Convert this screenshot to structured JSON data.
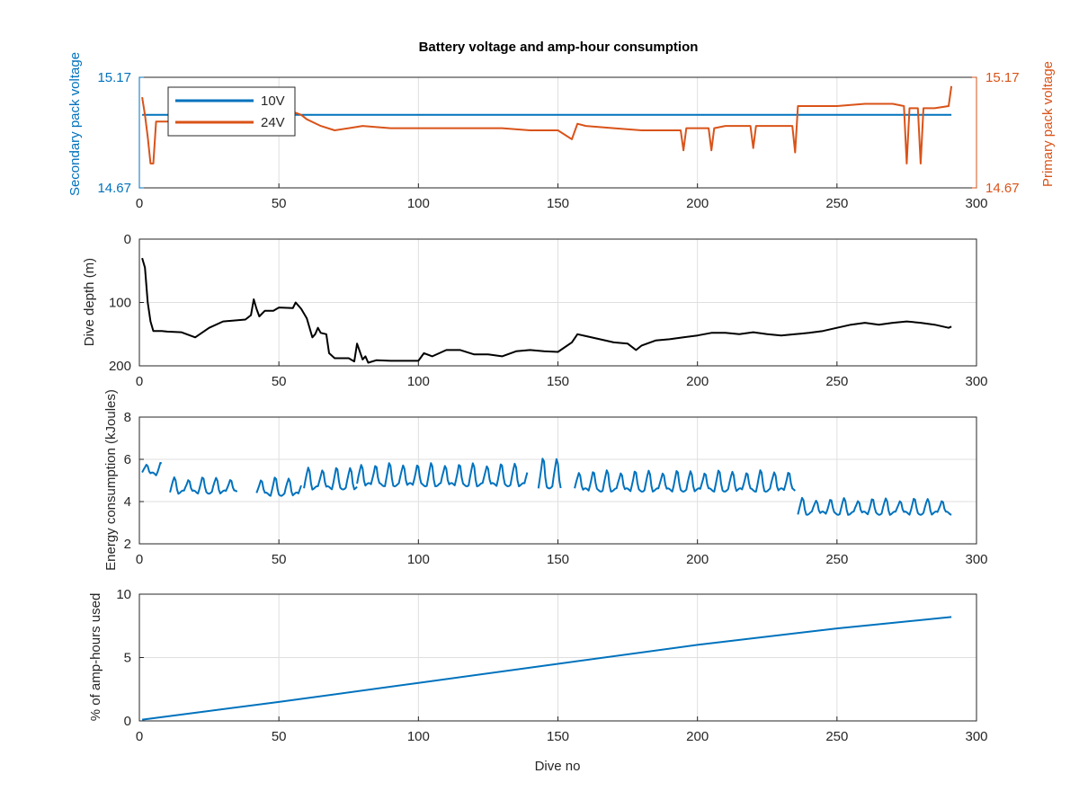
{
  "colors": {
    "blue": "#0072BD",
    "orange": "#D95319",
    "black": "#000000",
    "axis": "#262626",
    "grid": "#dfdfdf"
  },
  "chart_data": [
    {
      "type": "line",
      "title": "Battery voltage and amp-hour consumption",
      "xlabel": "",
      "ylabel_left": "Secondary pack voltage",
      "ylabel_right": "Primary pack voltage",
      "xlim": [
        0,
        300
      ],
      "ylim": [
        14.67,
        15.17
      ],
      "x_ticks": [
        "0",
        "50",
        "100",
        "150",
        "200",
        "250",
        "300"
      ],
      "y_ticks_left": [
        "14.67",
        "15.17"
      ],
      "y_ticks_right": [
        "14.67",
        "15.17"
      ],
      "grid": true,
      "legend_position": "top-left",
      "legend": [
        "10V",
        "24V"
      ],
      "series": [
        {
          "name": "10V",
          "axis": "left",
          "x": [
            1,
            291
          ],
          "y": [
            15.0,
            15.0
          ]
        },
        {
          "name": "24V",
          "axis": "right",
          "x": [
            1,
            2,
            3,
            4,
            5,
            6,
            7,
            8,
            10,
            15,
            20,
            30,
            40,
            50,
            55,
            56,
            58,
            60,
            65,
            70,
            75,
            80,
            90,
            100,
            110,
            120,
            130,
            140,
            150,
            155,
            157,
            160,
            170,
            180,
            190,
            194,
            195,
            196,
            200,
            204,
            205,
            206,
            210,
            219,
            220,
            221,
            230,
            234,
            235,
            236,
            240,
            250,
            260,
            270,
            274,
            275,
            276,
            277,
            279,
            280,
            281,
            285,
            290,
            291
          ],
          "y": [
            15.08,
            15.0,
            14.9,
            14.78,
            14.78,
            14.97,
            14.97,
            14.97,
            14.97,
            14.98,
            14.97,
            14.96,
            14.98,
            14.97,
            14.98,
            15.01,
            15.0,
            14.98,
            14.95,
            14.93,
            14.94,
            14.95,
            14.94,
            14.94,
            14.94,
            14.94,
            14.94,
            14.93,
            14.93,
            14.89,
            14.96,
            14.95,
            14.94,
            14.93,
            14.93,
            14.93,
            14.84,
            14.94,
            14.94,
            14.94,
            14.84,
            14.94,
            14.95,
            14.95,
            14.85,
            14.95,
            14.95,
            14.95,
            14.83,
            15.04,
            15.04,
            15.04,
            15.05,
            15.05,
            15.04,
            14.78,
            15.03,
            15.03,
            15.03,
            14.78,
            15.03,
            15.03,
            15.04,
            15.13
          ]
        }
      ]
    },
    {
      "type": "line",
      "xlabel": "",
      "ylabel": "Dive depth (m)",
      "xlim": [
        0,
        300
      ],
      "ylim": [
        200,
        0
      ],
      "y_reversed": true,
      "x_ticks": [
        "0",
        "50",
        "100",
        "150",
        "200",
        "250",
        "300"
      ],
      "y_ticks": [
        "0",
        "100",
        "200"
      ],
      "grid": true,
      "series": [
        {
          "axis": "left",
          "x": [
            1,
            2,
            3,
            4,
            5,
            8,
            10,
            15,
            20,
            25,
            30,
            38,
            40,
            41,
            42,
            43,
            45,
            48,
            50,
            55,
            56,
            58,
            60,
            62,
            63,
            64,
            65,
            67,
            68,
            70,
            75,
            77,
            78,
            80,
            81,
            82,
            85,
            90,
            95,
            100,
            102,
            105,
            110,
            115,
            120,
            125,
            130,
            135,
            140,
            145,
            150,
            155,
            157,
            160,
            165,
            170,
            175,
            178,
            180,
            185,
            190,
            195,
            200,
            205,
            210,
            215,
            220,
            225,
            230,
            235,
            240,
            245,
            250,
            255,
            260,
            265,
            270,
            275,
            280,
            285,
            290,
            291
          ],
          "y": [
            30,
            45,
            100,
            130,
            145,
            145,
            146,
            147,
            155,
            140,
            130,
            127,
            120,
            95,
            110,
            122,
            113,
            113,
            108,
            109,
            100,
            110,
            125,
            155,
            150,
            140,
            148,
            150,
            180,
            188,
            188,
            193,
            165,
            190,
            185,
            195,
            191,
            192,
            192,
            192,
            180,
            185,
            175,
            175,
            182,
            182,
            185,
            177,
            175,
            177,
            178,
            163,
            150,
            153,
            158,
            163,
            165,
            175,
            168,
            160,
            158,
            155,
            152,
            148,
            148,
            150,
            147,
            150,
            152,
            150,
            148,
            145,
            140,
            135,
            132,
            135,
            132,
            130,
            132,
            135,
            140,
            138
          ]
        }
      ]
    },
    {
      "type": "line",
      "xlabel": "",
      "ylabel": "Energy consumption (kJoules)",
      "xlim": [
        0,
        300
      ],
      "ylim": [
        2,
        8
      ],
      "x_ticks": [
        "0",
        "50",
        "100",
        "150",
        "200",
        "250",
        "300"
      ],
      "y_ticks": [
        "2",
        "4",
        "6",
        "8"
      ],
      "grid": true,
      "segments": [
        {
          "start": 1,
          "end": 8,
          "base": 5.3,
          "step": 5,
          "amp": 0.6
        },
        {
          "start": 11,
          "end": 35,
          "base": 4.45,
          "step": 5,
          "amp": 0.75
        },
        {
          "start": 42,
          "end": 58,
          "base": 4.35,
          "step": 5,
          "amp": 0.85
        },
        {
          "start": 59,
          "end": 78,
          "base": 4.65,
          "step": 5,
          "amp": 1.05
        },
        {
          "start": 78,
          "end": 139,
          "base": 4.8,
          "step": 5,
          "amp": 1.1
        },
        {
          "start": 143,
          "end": 151,
          "base": 4.7,
          "step": 5,
          "amp": 1.5
        },
        {
          "start": 156,
          "end": 235,
          "base": 4.55,
          "step": 5,
          "amp": 1.0
        },
        {
          "start": 236,
          "end": 291,
          "base": 3.45,
          "step": 5,
          "amp": 0.75
        }
      ]
    },
    {
      "type": "line",
      "xlabel": "Dive no",
      "ylabel": "% of amp-hours used",
      "xlim": [
        0,
        300
      ],
      "ylim": [
        0,
        10
      ],
      "x_ticks": [
        "0",
        "50",
        "100",
        "150",
        "200",
        "250",
        "300"
      ],
      "y_ticks": [
        "0",
        "5",
        "10"
      ],
      "grid": true,
      "series": [
        {
          "axis": "left",
          "x": [
            1,
            50,
            100,
            150,
            200,
            250,
            291
          ],
          "y": [
            0.1,
            1.5,
            3.0,
            4.5,
            6.0,
            7.3,
            8.2
          ]
        }
      ]
    }
  ]
}
